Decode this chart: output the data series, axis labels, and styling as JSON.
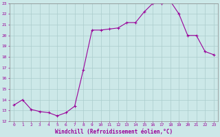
{
  "x": [
    0,
    1,
    2,
    3,
    4,
    5,
    6,
    7,
    8,
    9,
    10,
    11,
    12,
    13,
    14,
    15,
    16,
    17,
    18,
    19,
    20,
    21,
    22,
    23
  ],
  "y": [
    13.5,
    14.0,
    13.1,
    12.9,
    12.8,
    12.5,
    12.8,
    13.4,
    16.8,
    20.5,
    20.5,
    20.6,
    20.7,
    21.2,
    21.2,
    22.2,
    23.0,
    23.0,
    23.2,
    22.0,
    20.0,
    20.0,
    18.5,
    18.2
  ],
  "line_color": "#990099",
  "marker": "+",
  "marker_size": 3,
  "background_color": "#cce8e8",
  "grid_color": "#aacccc",
  "xlabel": "Windchill (Refroidissement éolien,°C)",
  "xlabel_color": "#990099",
  "tick_color": "#990099",
  "label_fontsize": 4.5,
  "xlabel_fontsize": 5.5,
  "ylim": [
    12,
    23
  ],
  "xlim": [
    -0.5,
    23.5
  ],
  "yticks": [
    12,
    13,
    14,
    15,
    16,
    17,
    18,
    19,
    20,
    21,
    22,
    23
  ],
  "xticks": [
    0,
    1,
    2,
    3,
    4,
    5,
    6,
    7,
    8,
    9,
    10,
    11,
    12,
    13,
    14,
    15,
    16,
    17,
    18,
    19,
    20,
    21,
    22,
    23
  ],
  "font_family": "monospace"
}
